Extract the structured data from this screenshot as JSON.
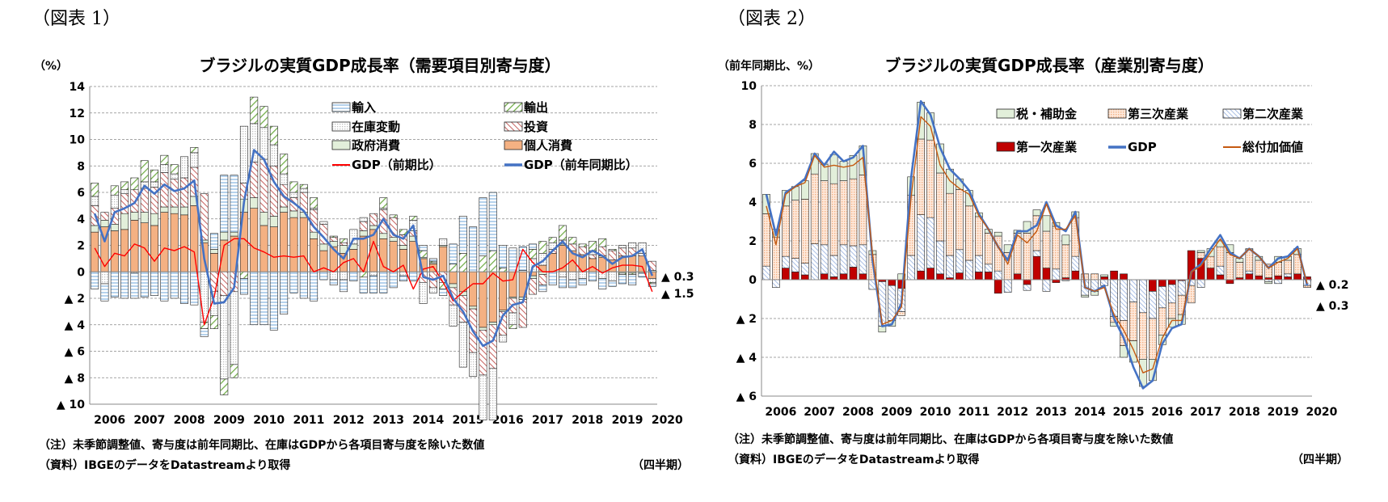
{
  "figure1": {
    "label": "（図表 1）",
    "note": "（注）未季節調整値、寄与度は前年同期比、在庫はGDPから各項目寄与度を除いた数値",
    "source": "（資料）IBGEのデータをDatastreamより取得",
    "period_label": "（四半期）",
    "end_labels": [
      "▲ 0.3",
      "▲ 1.5"
    ]
  },
  "figure2": {
    "label": "（図表 2）",
    "note": "（注）未季節調整値、寄与度は前年同期比、在庫はGDPから各項目寄与度を除いた数値",
    "source": "（資料）IBGEのデータをDatastreamより取得",
    "period_label": "（四半期）",
    "end_labels": [
      "▲ 0.2",
      "▲ 0.3"
    ]
  },
  "chart_data": [
    {
      "type": "bar",
      "stacked": true,
      "title": "ブラジルの実質GDP成長率（需要項目別寄与度）",
      "ylabel": "（%）",
      "ylim": [
        -10,
        14
      ],
      "yticks": [
        14,
        12,
        10,
        8,
        6,
        4,
        2,
        0,
        -2,
        -4,
        -6,
        -8,
        -10
      ],
      "ytick_labels": [
        "14",
        "12",
        "10",
        "8",
        "6",
        "4",
        "2",
        "0",
        "▲ 2",
        "▲ 4",
        "▲ 6",
        "▲ 8",
        "▲ 10"
      ],
      "x_start": "2006Q1",
      "x_end": "2020Q1",
      "year_labels": [
        "2006",
        "2007",
        "2008",
        "2009",
        "2010",
        "2011",
        "2012",
        "2013",
        "2014",
        "2015",
        "2016",
        "2017",
        "2018",
        "2019",
        "2020"
      ],
      "grid": true,
      "legend_position": "top-right",
      "series": [
        {
          "name": "個人消費",
          "kind": "bar",
          "color": "#f4b183",
          "values": [
            3.0,
            3.4,
            3.1,
            3.2,
            3.9,
            3.7,
            3.5,
            4.5,
            4.4,
            4.3,
            5.0,
            2.2,
            1.4,
            2.4,
            2.7,
            4.5,
            4.8,
            3.5,
            3.4,
            4.5,
            4.1,
            4.1,
            2.5,
            1.6,
            1.9,
            1.4,
            1.7,
            2.7,
            3.2,
            2.5,
            2.3,
            1.7,
            2.3,
            1.0,
            0.6,
            1.9,
            -0.9,
            -1.5,
            -2.6,
            -4.2,
            -3.8,
            -2.9,
            -1.9,
            -1.9,
            -0.3,
            0.5,
            1.4,
            2.0,
            1.6,
            1.3,
            1.0,
            1.1,
            0.9,
            1.2,
            1.2,
            1.2,
            -0.5
          ]
        },
        {
          "name": "政府消費",
          "kind": "bar",
          "color": "#e2efda",
          "values": [
            0.5,
            0.5,
            0.5,
            1.2,
            0.6,
            0.8,
            0.9,
            0.4,
            0.5,
            0.6,
            0.7,
            0.2,
            0.3,
            0.6,
            0.3,
            1.0,
            0.8,
            1.0,
            0.8,
            0.4,
            0.5,
            0.4,
            0.5,
            0.5,
            0.4,
            0.6,
            0.4,
            0.4,
            0.3,
            0.4,
            0.3,
            0.3,
            0.4,
            0.1,
            0.1,
            0.1,
            -0.3,
            -0.3,
            -0.2,
            -0.2,
            -0.2,
            -0.1,
            -0.1,
            -0.2,
            -0.2,
            -0.2,
            0.0,
            0.1,
            0.0,
            0.0,
            0.0,
            0.1,
            0.0,
            -0.1,
            -0.1,
            -0.1,
            0.1
          ]
        },
        {
          "name": "投資",
          "kind": "bar",
          "color": "#c0504d",
          "values": [
            1.5,
            0.6,
            1.2,
            1.5,
            1.7,
            1.8,
            2.0,
            2.6,
            2.1,
            2.2,
            2.2,
            3.5,
            -1.5,
            -1.8,
            -1.5,
            1.2,
            2.7,
            4.0,
            3.8,
            1.7,
            1.0,
            1.5,
            1.7,
            1.5,
            0.3,
            0.2,
            0.0,
            0.7,
            0.9,
            1.8,
            1.5,
            0.8,
            0.4,
            -0.8,
            -1.2,
            -0.8,
            -1.3,
            -2.0,
            -3.3,
            -3.4,
            -3.3,
            -1.8,
            -1.1,
            -2.1,
            -1.2,
            -0.8,
            0.3,
            0.3,
            0.5,
            0.6,
            0.3,
            0.7,
            0.7,
            0.6,
            0.6,
            0.2,
            0.7
          ]
        },
        {
          "name": "在庫変動",
          "kind": "bar",
          "color": "#bfbfbf",
          "values": [
            0.7,
            -0.9,
            1.0,
            0.3,
            -0.1,
            0.5,
            0.4,
            0.6,
            0.4,
            1.6,
            1.1,
            -3.8,
            -1.8,
            -6.3,
            -5.5,
            4.3,
            2.9,
            2.4,
            1.6,
            0.8,
            0.4,
            0.3,
            0.1,
            0.2,
            -0.6,
            -0.6,
            1.1,
            0.3,
            -0.3,
            0.1,
            0.0,
            -0.3,
            0.8,
            -1.6,
            -0.4,
            0.5,
            -1.6,
            -3.4,
            -1.8,
            -3.4,
            -3.9,
            -0.5,
            -0.9,
            0.1,
            1.0,
            0.9,
            0.5,
            -0.4,
            -0.6,
            -0.5,
            0.3,
            -0.5,
            -0.7,
            0.2,
            0.4,
            0.8,
            -0.3
          ]
        },
        {
          "name": "輸出",
          "kind": "bar",
          "color": "#70ad47",
          "values": [
            1.0,
            0.0,
            0.7,
            0.6,
            0.9,
            1.6,
            0.9,
            0.7,
            0.7,
            0.0,
            0.4,
            -0.5,
            -1.0,
            -1.2,
            -1.0,
            -0.5,
            2.0,
            1.6,
            1.4,
            1.5,
            0.8,
            0.3,
            0.8,
            0.0,
            0.1,
            0.3,
            0.0,
            -0.4,
            0.0,
            0.8,
            0.2,
            0.4,
            0.3,
            0.5,
            0.1,
            -0.5,
            0.6,
            1.4,
            0.0,
            1.2,
            1.6,
            0.3,
            -0.3,
            0.0,
            0.7,
            0.9,
            0.4,
            1.1,
            0.5,
            0.2,
            0.7,
            0.6,
            0.1,
            -0.1,
            -0.1,
            0.0,
            -0.1
          ]
        },
        {
          "name": "輸入",
          "kind": "bar",
          "color": "#9dc3e6",
          "values": [
            -1.3,
            -1.3,
            -1.9,
            -2.0,
            -1.9,
            -1.9,
            -1.8,
            -2.2,
            -2.0,
            -2.4,
            -2.5,
            -0.6,
            1.2,
            4.3,
            4.3,
            -1.2,
            -4.0,
            -4.0,
            -4.4,
            -3.2,
            -1.6,
            -2.0,
            -2.2,
            -0.6,
            -0.4,
            -0.9,
            -0.7,
            -1.2,
            -1.3,
            -1.6,
            -1.2,
            -0.4,
            -0.7,
            0.4,
            0.2,
            -0.5,
            1.5,
            2.8,
            3.4,
            4.4,
            4.4,
            1.7,
            1.8,
            1.8,
            0.4,
            -0.5,
            -1.0,
            -0.8,
            -0.6,
            -0.5,
            -0.7,
            -0.8,
            -0.4,
            -0.7,
            -0.8,
            -0.3,
            -0.2
          ]
        },
        {
          "name": "GDP（前期比）",
          "kind": "line",
          "color": "#ff0000",
          "values": [
            1.8,
            0.4,
            1.4,
            1.2,
            2.1,
            1.8,
            0.8,
            1.8,
            1.6,
            1.9,
            1.5,
            -4.0,
            -1.9,
            2.0,
            2.5,
            2.5,
            1.8,
            1.5,
            1.1,
            1.2,
            1.1,
            1.2,
            0.0,
            0.3,
            0.0,
            0.7,
            1.0,
            0.0,
            2.3,
            0.4,
            0.0,
            0.5,
            -1.3,
            0.2,
            0.4,
            -0.8,
            -2.2,
            -1.5,
            -0.9,
            -0.9,
            -0.1,
            -0.7,
            -0.6,
            1.7,
            0.7,
            0.0,
            0.0,
            0.3,
            0.9,
            0.0,
            0.4,
            -0.1,
            0.3,
            0.5,
            0.5,
            0.4,
            -1.5
          ]
        },
        {
          "name": "GDP（前年同期比）",
          "kind": "line",
          "color": "#4472c4",
          "values": [
            4.4,
            2.3,
            4.5,
            4.8,
            5.2,
            6.5,
            5.9,
            6.6,
            6.1,
            6.3,
            6.9,
            1.0,
            -2.4,
            -2.3,
            -1.2,
            5.3,
            9.2,
            8.5,
            6.8,
            5.7,
            5.2,
            4.6,
            3.4,
            2.6,
            1.7,
            1.0,
            2.5,
            2.5,
            2.8,
            4.0,
            2.8,
            2.5,
            3.5,
            -0.4,
            -0.6,
            -0.3,
            -2.0,
            -3.0,
            -4.5,
            -5.6,
            -5.2,
            -3.3,
            -2.5,
            -2.3,
            0.4,
            0.8,
            1.6,
            2.3,
            1.4,
            1.1,
            1.6,
            1.2,
            0.6,
            1.1,
            1.2,
            1.7,
            -0.3
          ]
        }
      ],
      "legend_order": [
        "輸入",
        "輸出",
        "在庫変動",
        "投資",
        "政府消費",
        "個人消費",
        "GDP（前期比）",
        "GDP（前年同期比）"
      ]
    },
    {
      "type": "bar",
      "stacked": true,
      "title": "ブラジルの実質GDP成長率（産業別寄与度）",
      "ylabel": "（前年同期比、%）",
      "ylim": [
        -6,
        10
      ],
      "yticks": [
        10,
        8,
        6,
        4,
        2,
        0,
        -2,
        -4,
        -6
      ],
      "ytick_labels": [
        "10",
        "8",
        "6",
        "4",
        "2",
        "0",
        "▲ 2",
        "▲ 4",
        "▲ 6"
      ],
      "x_start": "2006Q1",
      "x_end": "2020Q1",
      "year_labels": [
        "2006",
        "2007",
        "2008",
        "2009",
        "2010",
        "2011",
        "2012",
        "2013",
        "2014",
        "2015",
        "2016",
        "2017",
        "2018",
        "2019",
        "2020"
      ],
      "grid": true,
      "legend_position": "top-right",
      "series": [
        {
          "name": "第一次産業",
          "kind": "bar",
          "color": "#c00000",
          "values": [
            0.0,
            0.0,
            0.6,
            0.4,
            0.25,
            0.0,
            0.3,
            0.15,
            0.3,
            0.65,
            0.3,
            0.0,
            -0.1,
            -0.3,
            -0.45,
            0.0,
            0.45,
            0.6,
            0.3,
            0.1,
            0.35,
            0.0,
            0.4,
            0.4,
            -0.7,
            0.0,
            0.3,
            -0.25,
            1.2,
            0.6,
            -0.15,
            0.1,
            0.45,
            0.0,
            0.0,
            0.15,
            0.45,
            0.3,
            0.0,
            0.0,
            -0.6,
            -0.35,
            -0.25,
            -0.05,
            1.5,
            1.1,
            0.6,
            0.25,
            -0.2,
            0.1,
            0.3,
            0.2,
            0.1,
            0.2,
            0.15,
            0.3,
            0.15
          ]
        },
        {
          "name": "第二次産業",
          "kind": "bar",
          "color": "#8ea9db",
          "values": [
            0.7,
            -0.4,
            0.6,
            0.7,
            0.6,
            1.85,
            1.5,
            1.1,
            1.5,
            1.1,
            1.5,
            -0.5,
            -2.3,
            -1.8,
            -1.2,
            1.25,
            2.9,
            2.6,
            1.7,
            1.15,
            1.2,
            1.0,
            0.85,
            0.4,
            0.45,
            -0.65,
            0.0,
            -0.3,
            0.3,
            -0.6,
            0.55,
            -0.05,
            0.75,
            -0.8,
            -0.6,
            -0.3,
            -1.9,
            -2.1,
            -1.15,
            -1.7,
            -1.4,
            -1.1,
            -0.95,
            -0.75,
            -0.3,
            -0.4,
            0.0,
            0.45,
            0.0,
            0.0,
            0.15,
            0.0,
            -0.1,
            -0.2,
            0.15,
            0.0,
            -0.3
          ]
        },
        {
          "name": "第三次産業",
          "kind": "bar",
          "color": "#f8cbad",
          "values": [
            2.7,
            2.2,
            2.6,
            3.0,
            3.3,
            3.6,
            3.3,
            3.7,
            3.3,
            3.45,
            3.6,
            1.3,
            0.0,
            0.0,
            -0.2,
            3.1,
            3.9,
            4.0,
            3.5,
            3.2,
            3.1,
            2.8,
            2.0,
            1.6,
            1.8,
            1.4,
            2.1,
            2.4,
            1.8,
            1.9,
            2.2,
            1.7,
            2.0,
            0.3,
            0.3,
            0.0,
            -0.3,
            -1.3,
            -2.0,
            -2.4,
            -2.1,
            -1.4,
            -0.8,
            -1.0,
            -0.9,
            0.3,
            0.6,
            1.0,
            1.4,
            0.8,
            1.1,
            0.8,
            0.7,
            0.7,
            0.7,
            1.0,
            -0.1
          ]
        },
        {
          "name": "税・補助金",
          "kind": "bar",
          "color": "#e2efda",
          "values": [
            1.0,
            0.4,
            0.8,
            0.7,
            0.95,
            1.05,
            0.85,
            1.5,
            1.0,
            1.2,
            1.5,
            0.2,
            -0.3,
            -0.3,
            0.3,
            0.95,
            1.9,
            1.4,
            1.5,
            1.25,
            0.55,
            0.8,
            0.2,
            0.2,
            0.2,
            0.4,
            0.15,
            0.6,
            0.3,
            0.8,
            0.2,
            0.5,
            0.3,
            -0.1,
            -0.2,
            0.1,
            -0.2,
            -0.6,
            -1.1,
            -1.4,
            -1.1,
            -0.5,
            -0.45,
            -0.5,
            0.0,
            0.1,
            0.4,
            0.3,
            0.4,
            0.2,
            0.05,
            0.2,
            -0.1,
            0.3,
            0.2,
            0.3,
            0.0
          ]
        },
        {
          "name": "GDP",
          "kind": "line",
          "color": "#4472c4",
          "values": [
            4.4,
            2.3,
            4.5,
            4.8,
            5.2,
            6.5,
            5.9,
            6.6,
            6.1,
            6.3,
            6.9,
            1.0,
            -2.4,
            -2.3,
            -1.2,
            5.3,
            9.2,
            8.5,
            6.8,
            5.7,
            5.2,
            4.6,
            3.4,
            2.6,
            1.7,
            1.0,
            2.5,
            2.5,
            2.8,
            4.0,
            2.8,
            2.5,
            3.5,
            -0.4,
            -0.6,
            -0.3,
            -2.0,
            -3.0,
            -4.5,
            -5.6,
            -5.2,
            -3.3,
            -2.5,
            -2.3,
            0.4,
            0.8,
            1.6,
            2.3,
            1.4,
            1.1,
            1.6,
            1.2,
            0.6,
            1.1,
            1.2,
            1.7,
            -0.3
          ]
        },
        {
          "name": "総付加価値",
          "kind": "line",
          "color": "#c55a11",
          "values": [
            3.8,
            1.8,
            4.4,
            4.8,
            5.0,
            6.4,
            5.8,
            5.9,
            5.8,
            5.9,
            6.3,
            1.3,
            -2.3,
            -2.1,
            -1.4,
            4.3,
            8.4,
            7.9,
            5.9,
            5.1,
            4.7,
            4.4,
            3.3,
            2.6,
            1.7,
            0.8,
            2.3,
            1.9,
            2.5,
            3.9,
            2.6,
            2.6,
            3.3,
            -0.4,
            -0.6,
            -0.4,
            -1.8,
            -2.6,
            -3.6,
            -4.8,
            -4.6,
            -3.0,
            -2.1,
            -2.1,
            0.4,
            0.7,
            1.4,
            2.1,
            1.3,
            1.1,
            1.6,
            1.2,
            0.6,
            0.9,
            1.1,
            1.6,
            -0.2
          ]
        }
      ],
      "legend_order": [
        "税・補助金",
        "第三次産業",
        "第二次産業",
        "第一次産業",
        "GDP",
        "総付加価値"
      ]
    }
  ]
}
